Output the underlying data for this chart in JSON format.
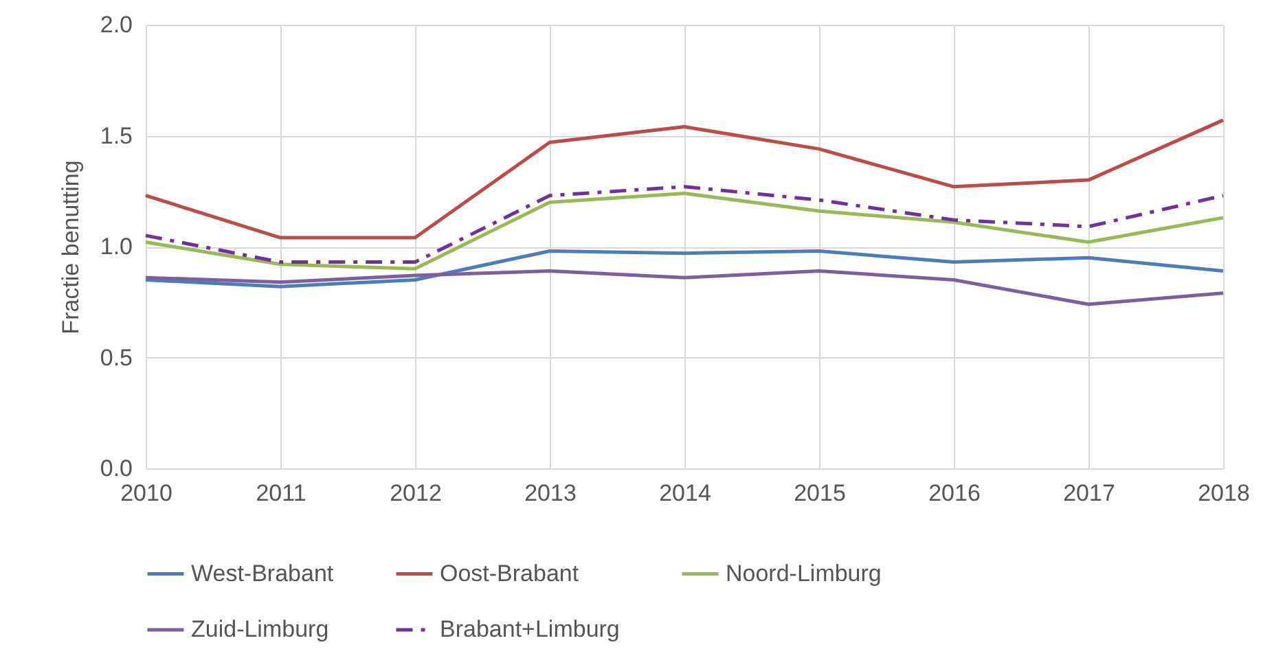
{
  "chart_data": {
    "type": "line",
    "ylabel": "Fractie benutting",
    "x": [
      2010,
      2011,
      2012,
      2013,
      2014,
      2015,
      2016,
      2017,
      2018
    ],
    "xlim": [
      2010,
      2018
    ],
    "xticks": [
      2010,
      2011,
      2012,
      2013,
      2014,
      2015,
      2016,
      2017,
      2018
    ],
    "ylim": [
      0,
      2
    ],
    "yticks": [
      {
        "value": 0,
        "label": "0.0"
      },
      {
        "value": 0.5,
        "label": "0.5"
      },
      {
        "value": 1,
        "label": "1.0"
      },
      {
        "value": 1.5,
        "label": "1.5"
      },
      {
        "value": 2,
        "label": "2.0"
      }
    ],
    "grid": true,
    "legend": "bottom",
    "marker": "none",
    "series": [
      {
        "name": "West-Brabant",
        "color": "#4a7ebb",
        "line_style": "solid",
        "values": [
          0.85,
          0.82,
          0.85,
          0.98,
          0.97,
          0.98,
          0.93,
          0.95,
          0.89
        ]
      },
      {
        "name": "Oost-Brabant",
        "color": "#be4b48",
        "line_style": "solid",
        "values": [
          1.23,
          1.04,
          1.04,
          1.47,
          1.54,
          1.44,
          1.27,
          1.3,
          1.57
        ]
      },
      {
        "name": "Noord-Limburg",
        "color": "#98b954",
        "line_style": "solid",
        "values": [
          1.02,
          0.92,
          0.9,
          1.2,
          1.24,
          1.16,
          1.11,
          1.02,
          1.13
        ]
      },
      {
        "name": "Zuid-Limburg",
        "color": "#7d5fa0",
        "line_style": "solid",
        "values": [
          0.86,
          0.84,
          0.87,
          0.89,
          0.86,
          0.89,
          0.85,
          0.74,
          0.79
        ]
      },
      {
        "name": "Brabant+Limburg",
        "color": "#7030a0",
        "line_style": "dashed",
        "values": [
          1.05,
          0.93,
          0.93,
          1.23,
          1.27,
          1.21,
          1.12,
          1.09,
          1.23
        ]
      }
    ]
  }
}
